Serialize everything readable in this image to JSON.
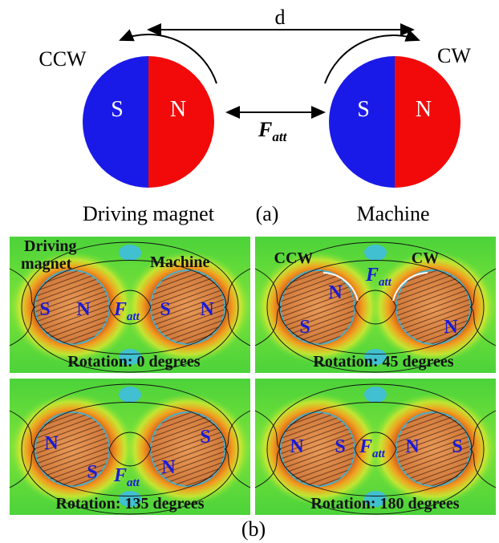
{
  "part_a": {
    "distance": "d",
    "left_rotation": "CCW",
    "right_rotation": "CW",
    "left_magnet": {
      "south": "S",
      "north": "N"
    },
    "right_magnet": {
      "south": "S",
      "north": "N"
    },
    "force": {
      "symbol": "F",
      "subscript": "att"
    },
    "left_label": "Driving magnet",
    "caption": "(a)",
    "right_label": "Machine"
  },
  "part_b": {
    "panels": [
      {
        "labels": [
          "Driving",
          "magnet",
          "Machine",
          "S",
          "N",
          "S",
          "N"
        ],
        "force": {
          "symbol": "F",
          "subscript": "att"
        },
        "rotation": "Rotation: 0 degrees"
      },
      {
        "labels": [
          "CCW",
          "CW",
          "N",
          "S",
          "N"
        ],
        "force": {
          "symbol": "F",
          "subscript": "att"
        },
        "rotation": "Rotation: 45 degrees"
      },
      {
        "labels": [
          "N",
          "S",
          "S",
          "N"
        ],
        "force": {
          "symbol": "F",
          "subscript": "att"
        },
        "rotation": "Rotation: 135 degrees"
      },
      {
        "labels": [
          "N",
          "S",
          "N",
          "S"
        ],
        "force": {
          "symbol": "F",
          "subscript": "att"
        },
        "rotation": "Rotation: 180 degrees"
      }
    ],
    "caption": "(b)"
  }
}
